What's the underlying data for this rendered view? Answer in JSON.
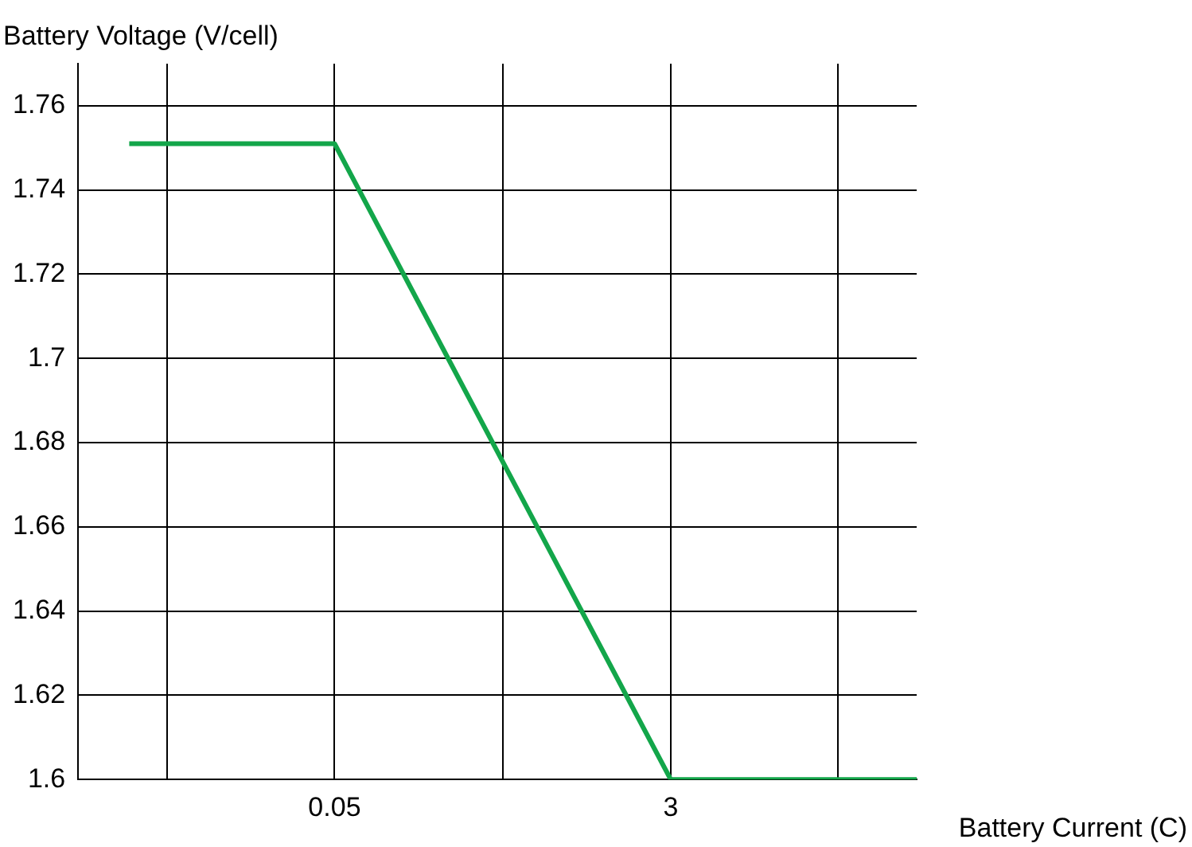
{
  "chart_data": {
    "type": "line",
    "xlabel": "Battery Current (C)",
    "ylabel": "Battery Voltage (V/cell)",
    "log": "x",
    "x": [
      0.0041,
      0.05,
      3,
      60
    ],
    "series": [
      {
        "color": "#13a64a",
        "values": [
          1.751,
          1.751,
          1.6,
          1.6
        ]
      }
    ],
    "xlim": [
      0.0022,
      60
    ],
    "xticks": [
      {
        "value": 0.0065,
        "label": null
      },
      0.05,
      {
        "value": 0.39,
        "label": null
      },
      3,
      {
        "value": 23,
        "label": null
      }
    ],
    "ylim": [
      1.6,
      1.77
    ],
    "yticks": [
      1.6,
      1.62,
      1.64,
      1.66,
      1.68,
      1.7,
      1.72,
      1.74,
      1.76
    ],
    "grid": true,
    "legend": false,
    "marker": "none",
    "line_style": "solid"
  }
}
